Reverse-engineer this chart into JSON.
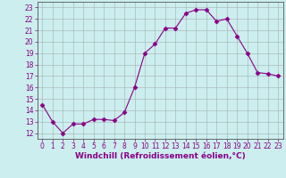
{
  "x": [
    0,
    1,
    2,
    3,
    4,
    5,
    6,
    7,
    8,
    9,
    10,
    11,
    12,
    13,
    14,
    15,
    16,
    17,
    18,
    19,
    20,
    21,
    22,
    23
  ],
  "y": [
    14.5,
    13.0,
    12.0,
    12.8,
    12.8,
    13.2,
    13.2,
    13.1,
    13.8,
    16.0,
    19.0,
    19.8,
    21.2,
    21.2,
    22.5,
    22.8,
    22.8,
    21.8,
    22.0,
    20.5,
    19.0,
    17.3,
    17.2,
    17.0
  ],
  "line_color": "#880088",
  "marker": "D",
  "marker_size": 2.5,
  "bg_color": "#cceeee",
  "grid_color": "#aabbbb",
  "xlabel": "Windchill (Refroidissement éolien,°C)",
  "xlim": [
    -0.5,
    23.5
  ],
  "ylim": [
    11.5,
    23.5
  ],
  "yticks": [
    12,
    13,
    14,
    15,
    16,
    17,
    18,
    19,
    20,
    21,
    22,
    23
  ],
  "xticks": [
    0,
    1,
    2,
    3,
    4,
    5,
    6,
    7,
    8,
    9,
    10,
    11,
    12,
    13,
    14,
    15,
    16,
    17,
    18,
    19,
    20,
    21,
    22,
    23
  ],
  "tick_label_size": 5.5,
  "xlabel_size": 6.5,
  "xlabel_weight": "bold"
}
